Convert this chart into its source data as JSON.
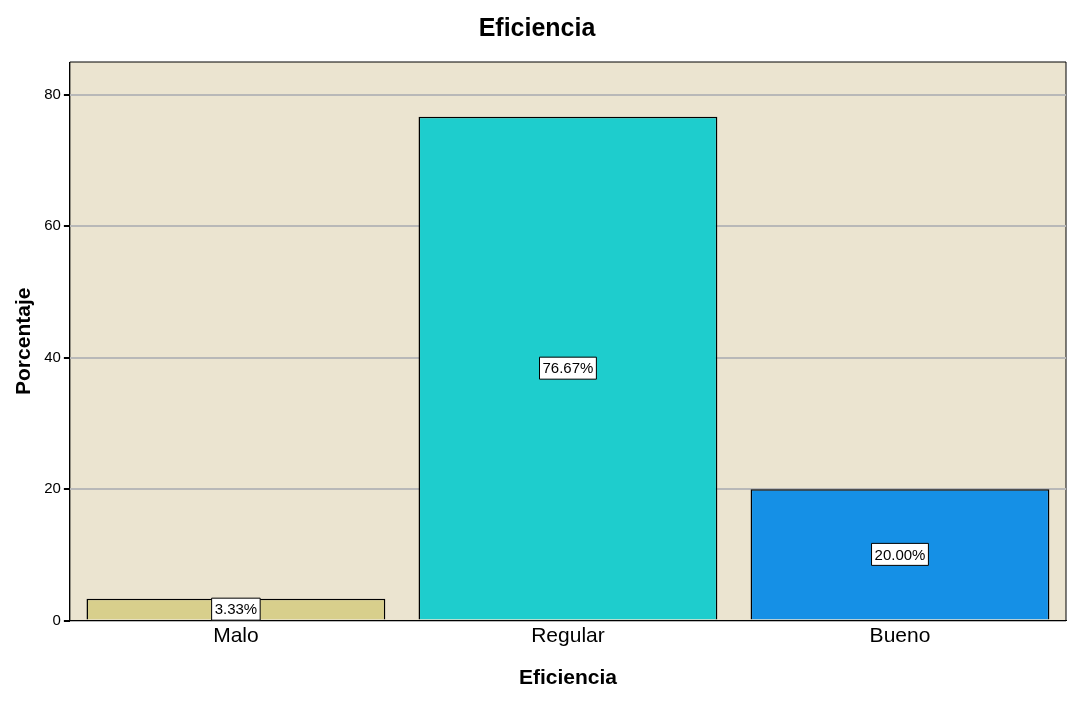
{
  "chart_data": {
    "type": "bar",
    "title": "Eficiencia",
    "xlabel": "Eficiencia",
    "ylabel": "Porcentaje",
    "categories": [
      "Malo",
      "Regular",
      "Bueno"
    ],
    "values": [
      3.33,
      76.67,
      20.0
    ],
    "colors": [
      "#d8cf8c",
      "#1ecdcd",
      "#1590e6"
    ],
    "value_labels": [
      "3.33%",
      "76.67%",
      "20.00%"
    ],
    "ylim": [
      0,
      85
    ],
    "yticks": [
      0,
      20,
      40,
      60,
      80
    ],
    "grid": "y",
    "legend": false
  }
}
